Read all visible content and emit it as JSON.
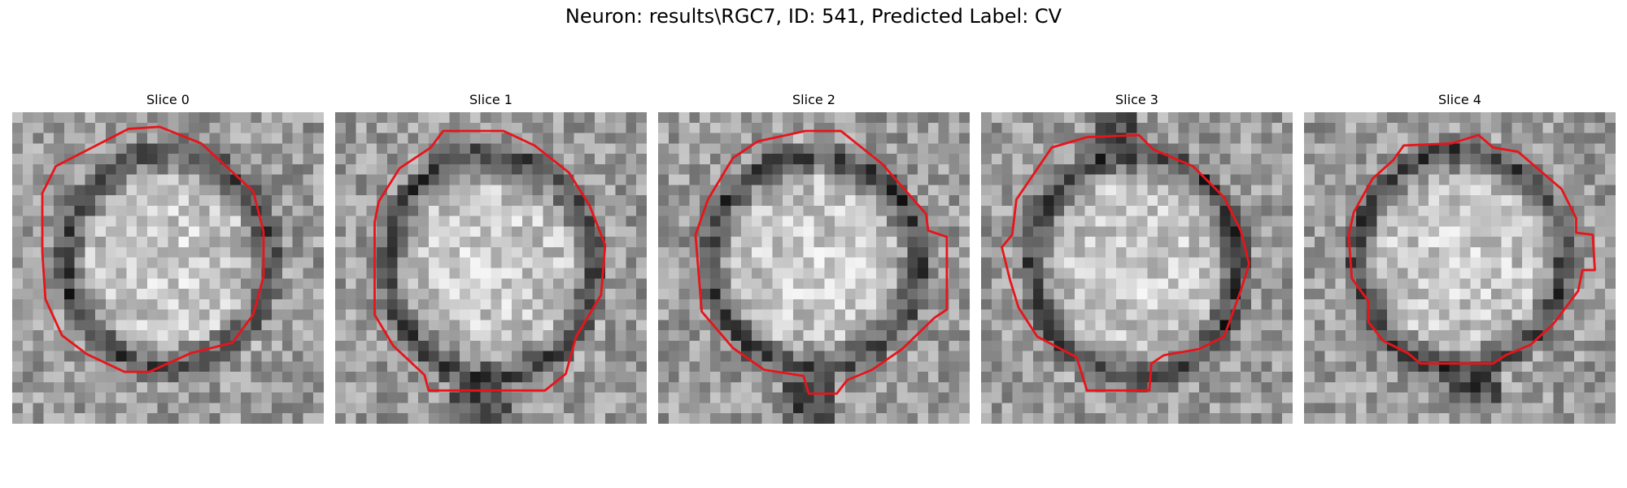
{
  "figure": {
    "title": "Neuron: results\\RGC7, ID: 541, Predicted Label: CV",
    "outline_color": "#e8141a"
  },
  "panels": [
    {
      "title": "Slice 0"
    },
    {
      "title": "Slice 1"
    },
    {
      "title": "Slice 2"
    },
    {
      "title": "Slice 3"
    },
    {
      "title": "Slice 4"
    }
  ]
}
